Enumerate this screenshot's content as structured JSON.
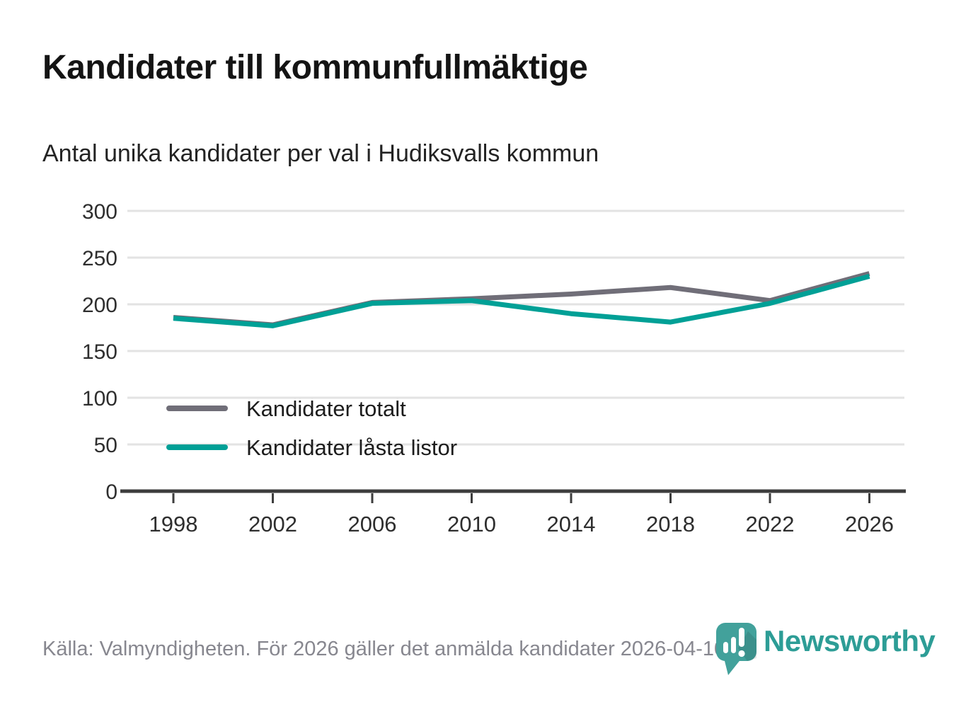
{
  "title": "Kandidater till kommunfullmäktige",
  "subtitle": "Antal unika kandidater per val i Hudiksvalls kommun",
  "footer": {
    "source": "Källa: Valmyndigheten. För 2026 gäller det anmälda kandidater 2026-04-10."
  },
  "branding": {
    "name": "Newsworthy",
    "icon": "newsworthy-pin-barchart-icon",
    "text_color": "#2d9d96",
    "pin_color": "#42a19b"
  },
  "colors": {
    "total_line": "#706e78",
    "locked_line": "#00a096",
    "gridline": "#e3e3e3",
    "axis": "#3d3d3d",
    "tick_label": "#2e2e2e"
  },
  "chart_data": {
    "type": "line",
    "title": "Kandidater till kommunfullmäktige",
    "subtitle": "Antal unika kandidater per val i Hudiksvalls kommun",
    "categories": [
      "1998",
      "2002",
      "2006",
      "2010",
      "2014",
      "2018",
      "2022",
      "2026"
    ],
    "series": [
      {
        "name": "Kandidater totalt",
        "color": "#706e78",
        "values": [
          186,
          178,
          202,
          206,
          211,
          218,
          204,
          233
        ]
      },
      {
        "name": "Kandidater låsta listor",
        "color": "#00a096",
        "values": [
          185,
          177,
          201,
          204,
          190,
          181,
          201,
          230
        ]
      }
    ],
    "xlabel": "",
    "ylabel": "",
    "ylim": [
      0,
      300
    ],
    "yticks": [
      0,
      50,
      100,
      150,
      200,
      250,
      300
    ],
    "grid": "horizontal",
    "legend_position": "inside-bottom-left"
  }
}
